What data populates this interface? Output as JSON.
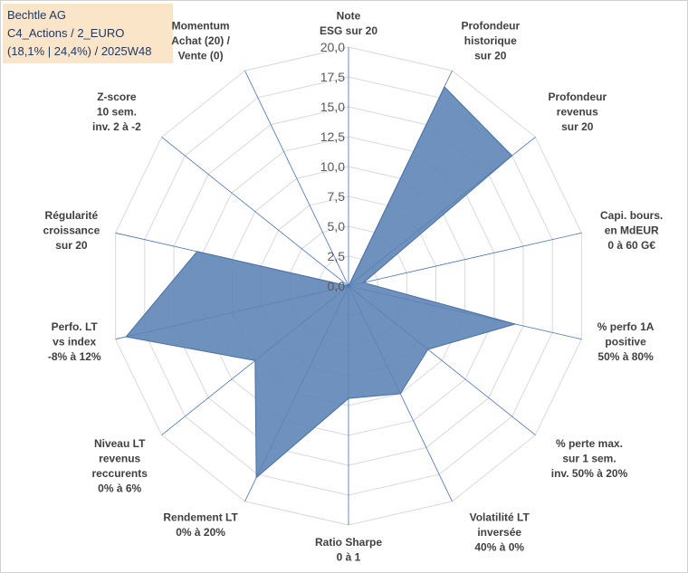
{
  "title": {
    "line1": "Bechtle AG",
    "line2": "C4_Actions / 2_EURO",
    "line3": "(18,1% | 24,4%) / 2025W48"
  },
  "colors": {
    "fill": "#5b82b4",
    "stroke": "#4a6fa5",
    "grid": "#d9d9d9",
    "spoke": "#4472c4",
    "title_bg": "#fbe5c8"
  },
  "chart_data": {
    "type": "radar",
    "title": "Bechtle AG",
    "rmin": 0,
    "rmax": 20,
    "tick_labels": [
      "0,0",
      "2,5",
      "5,0",
      "7,5",
      "10,0",
      "12,5",
      "15,0",
      "17,5",
      "20,0"
    ],
    "axes": [
      [
        "Note",
        "ESG sur 20"
      ],
      [
        "Profondeur",
        "historique",
        "sur 20"
      ],
      [
        "Profondeur",
        "revenus",
        "sur 20"
      ],
      [
        "Capi. bours.",
        "en MdEUR",
        "0 à 60 G€"
      ],
      [
        "% perfo 1A",
        "positive",
        "50% à 80%"
      ],
      [
        "% perte max.",
        "sur 1 sem.",
        "inv. 50% à 20%"
      ],
      [
        "Volatilité LT",
        "inversée",
        "40% à 0%"
      ],
      [
        "Ratio Sharpe",
        "0 à 1"
      ],
      [
        "Rendement LT",
        "0% à 20%"
      ],
      [
        "Niveau LT",
        "revenus",
        "reccurents",
        "0% à 6%"
      ],
      [
        "Perfo. LT",
        "vs index",
        "-8% à 12%"
      ],
      [
        "Régularité",
        "croissance",
        "sur 20"
      ],
      [
        "Z-score",
        "10 sem.",
        "inv. 2 à -2"
      ],
      [
        "Momentum",
        "Achat (20) /",
        "Vente (0)"
      ]
    ],
    "series": [
      {
        "name": "Bechtle AG",
        "values": [
          0,
          18.5,
          17.5,
          1.3,
          14.3,
          8.5,
          10.0,
          9.4,
          17.8,
          10.0,
          19.1,
          13.0,
          0,
          0
        ]
      }
    ]
  }
}
